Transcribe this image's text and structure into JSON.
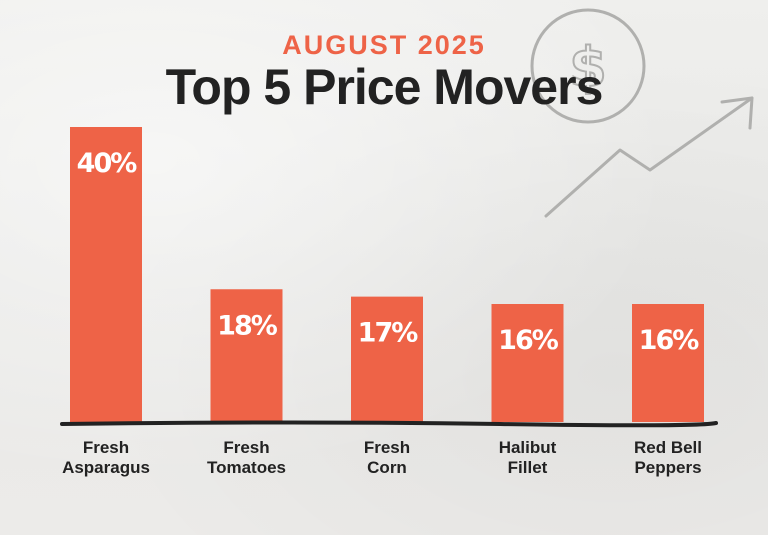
{
  "header": {
    "subtitle": "AUGUST 2025",
    "title": "Top 5 Price Movers"
  },
  "decorations": {
    "coin_symbol": "$",
    "coin_icon": "dollar-coin-icon",
    "trend_icon": "trend-up-arrow-icon"
  },
  "colors": {
    "bar": "#ee6347",
    "title": "#222222",
    "subtitle": "#ee6347",
    "baseline": "#222222",
    "value_text": "#ffffff",
    "decoration": "#b0b0ae"
  },
  "chart_data": {
    "type": "bar",
    "title": "Top 5 Price Movers",
    "subtitle": "AUGUST 2025",
    "categories": [
      [
        "Fresh",
        "Asparagus"
      ],
      [
        "Fresh",
        "Tomatoes"
      ],
      [
        "Fresh",
        "Corn"
      ],
      [
        "Halibut",
        "Fillet"
      ],
      [
        "Red Bell",
        "Peppers"
      ]
    ],
    "values": [
      40,
      18,
      17,
      16,
      16
    ],
    "value_labels": [
      "40%",
      "18%",
      "17%",
      "16%",
      "16%"
    ],
    "xlabel": "",
    "ylabel": "",
    "ylim": [
      0,
      40
    ],
    "grid": false,
    "legend": "none"
  }
}
